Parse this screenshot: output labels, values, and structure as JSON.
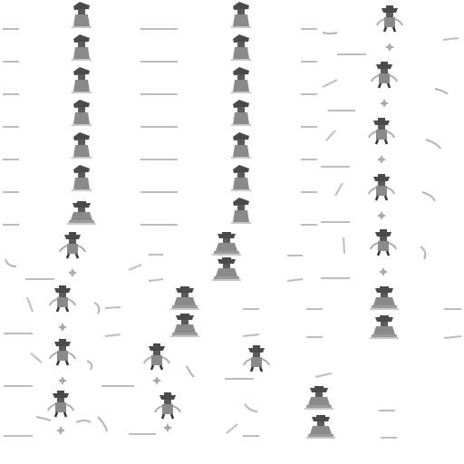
{
  "scene": "sprite-sheet",
  "palette": {
    "background": "#ffffff",
    "body_dark": "#4a4a4a",
    "body_mid": "#8a8a8a",
    "body_light": "#b8b8b8",
    "dash": "#bdbdbd",
    "spark": "#9a9a9a"
  },
  "sprite_types": [
    "standing-cowboy",
    "sitting-cowboy",
    "arms-out-cowboy",
    "spark-dust",
    "motion-streak"
  ]
}
